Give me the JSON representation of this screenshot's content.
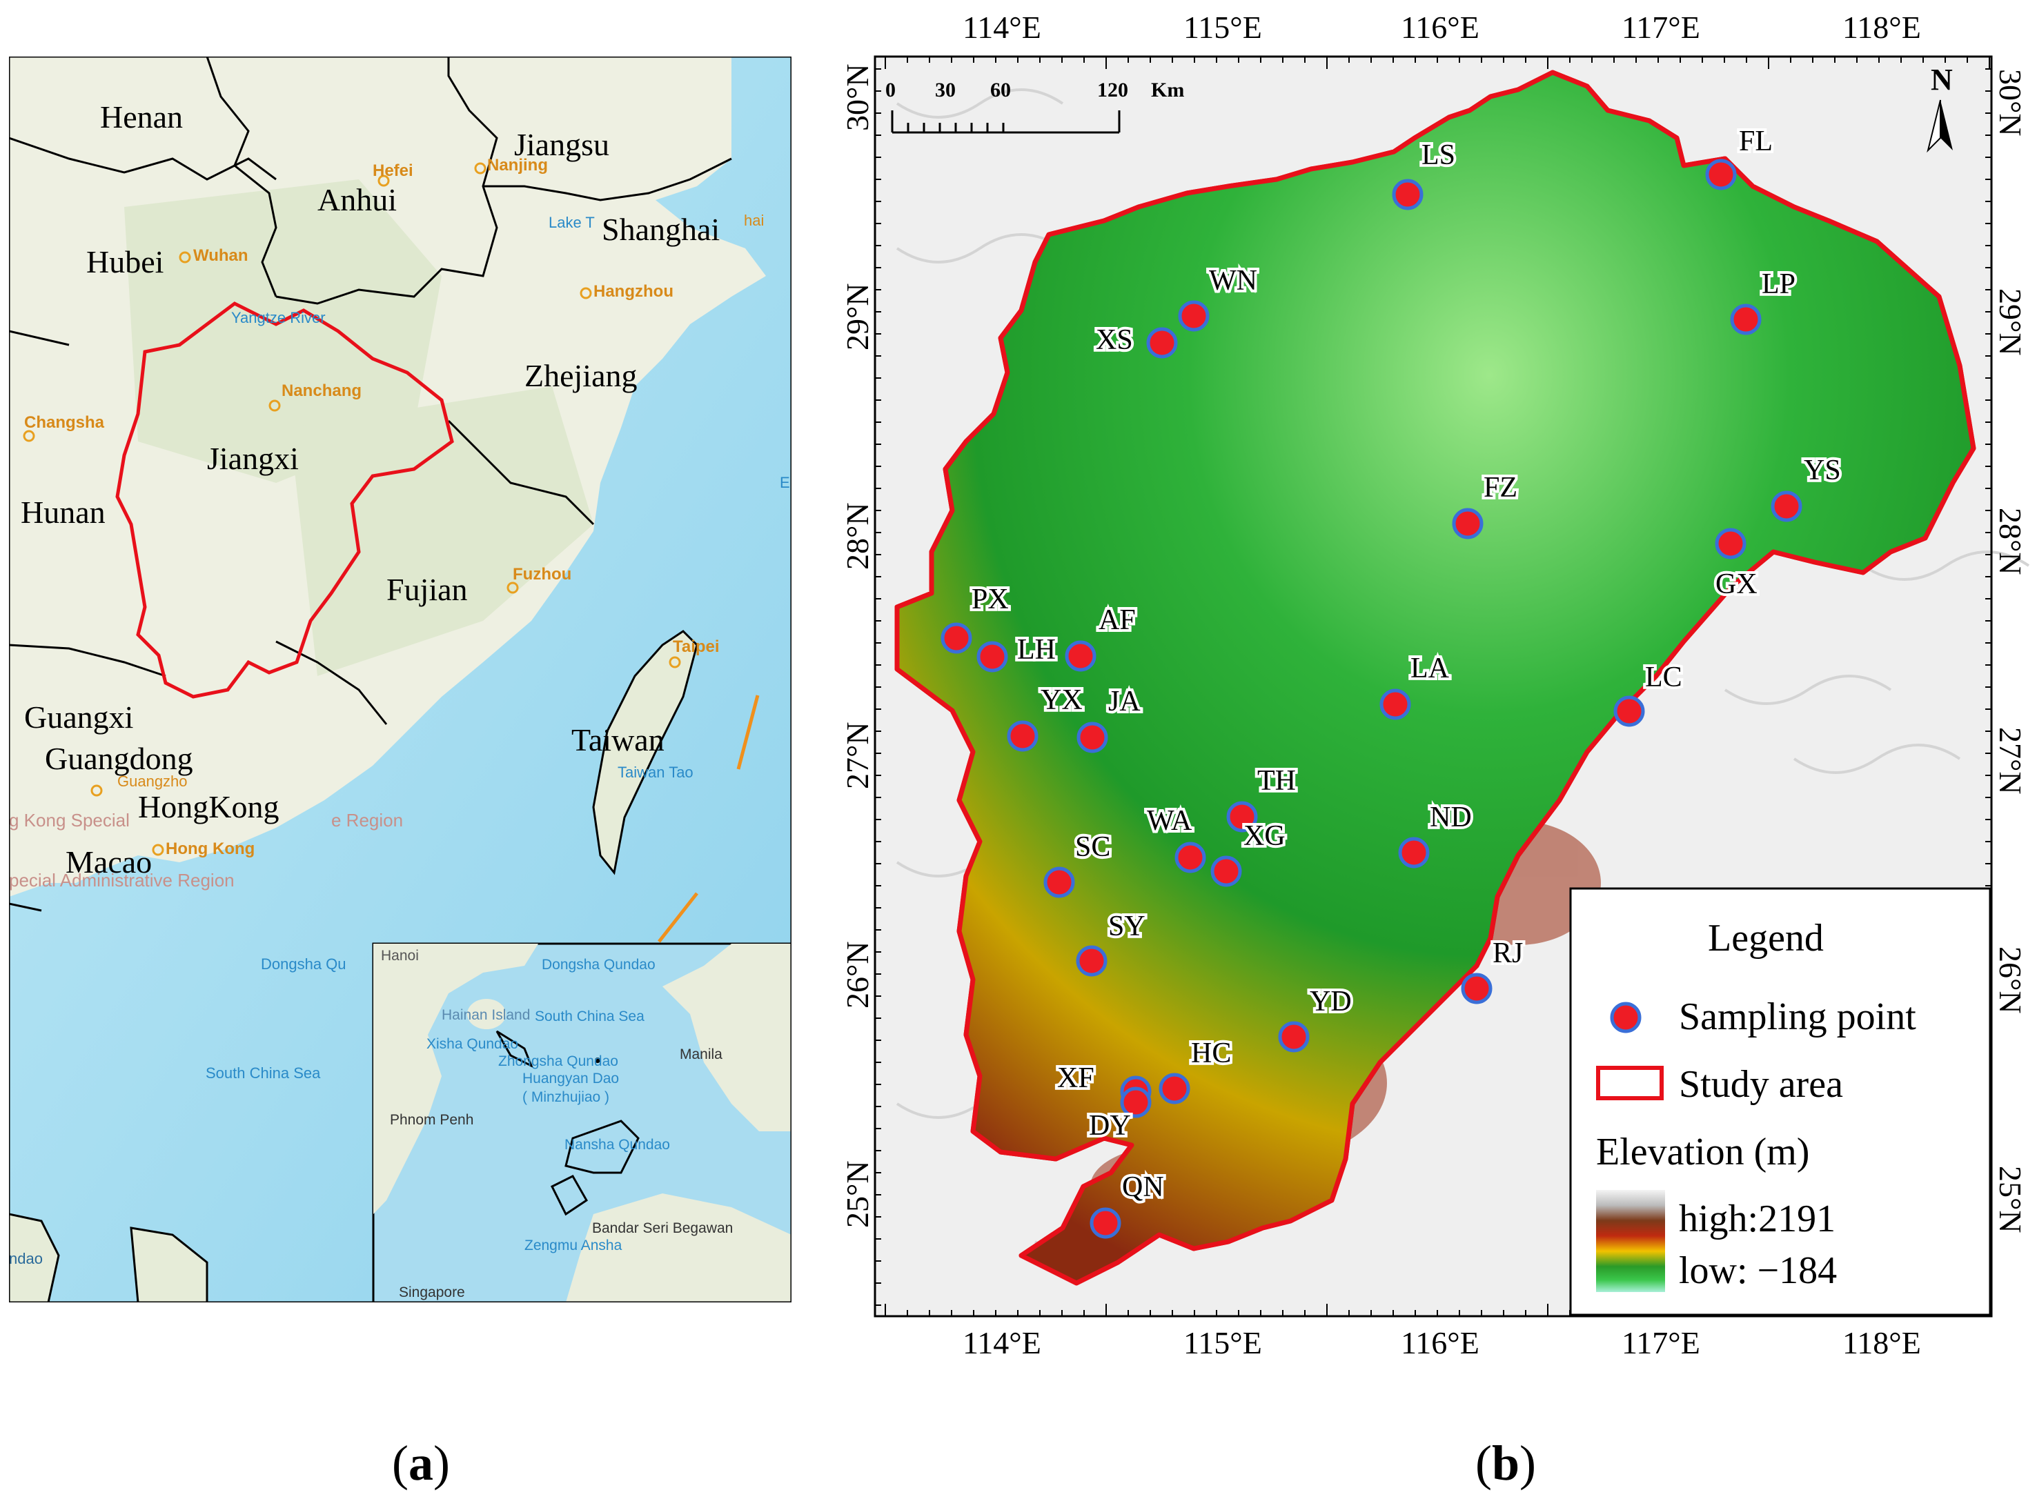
{
  "panel_a": {
    "caption_letter": "a",
    "provinces": [
      {
        "name": "Henan"
      },
      {
        "name": "Jiangsu"
      },
      {
        "name": "Anhui"
      },
      {
        "name": "Shanghai"
      },
      {
        "name": "Hubei"
      },
      {
        "name": "Zhejiang"
      },
      {
        "name": "Jiangxi"
      },
      {
        "name": "Hunan"
      },
      {
        "name": "Fujian"
      },
      {
        "name": "Guangxi"
      },
      {
        "name": "Guangdong"
      },
      {
        "name": "HongKong"
      },
      {
        "name": "Taiwan"
      },
      {
        "name": "Macao"
      }
    ],
    "cities": [
      {
        "name": "Hefei"
      },
      {
        "name": "Nanjing"
      },
      {
        "name": "Wuhan"
      },
      {
        "name": "Hangzhou"
      },
      {
        "name": "Nanchang"
      },
      {
        "name": "Changsha"
      },
      {
        "name": "Fuzhou"
      },
      {
        "name": "Taipei"
      },
      {
        "name": "Hong Kong"
      }
    ],
    "basemap_labels": [
      {
        "text": "Lake T"
      },
      {
        "text": "Yangtze River"
      },
      {
        "text": "Taiwan Tao"
      },
      {
        "text": "Dongsha Qu"
      },
      {
        "text": "South China Sea"
      },
      {
        "text": "hai"
      },
      {
        "text": "Guangzho"
      },
      {
        "text": "g Kong Special"
      },
      {
        "text": "e Region"
      },
      {
        "text": "pecial Administrative Region"
      },
      {
        "text": "ndao"
      },
      {
        "text": "E"
      }
    ],
    "inset_labels": [
      {
        "text": "Hanoi"
      },
      {
        "text": "Dongsha Qundao"
      },
      {
        "text": "Hainan Island"
      },
      {
        "text": "South China Sea"
      },
      {
        "text": "Xisha Qundao"
      },
      {
        "text": "Zhongsha Qundao"
      },
      {
        "text": "Huangyan Dao"
      },
      {
        "text": "( Minzhujiao )"
      },
      {
        "text": "Manila"
      },
      {
        "text": "Phnom Penh"
      },
      {
        "text": "Nansha Qundao"
      },
      {
        "text": "Bandar Seri Begawan"
      },
      {
        "text": "Zengmu Ansha"
      },
      {
        "text": "Singapore"
      }
    ]
  },
  "panel_b": {
    "caption_letter": "b",
    "lon_ticks": [
      "114°E",
      "115°E",
      "116°E",
      "117°E",
      "118°E"
    ],
    "lat_ticks": [
      "30°N",
      "29°N",
      "28°N",
      "27°N",
      "26°N",
      "25°N"
    ],
    "scale_bar": {
      "labels": [
        "0",
        "30",
        "60",
        "120"
      ],
      "unit": "Km"
    },
    "north": "N",
    "sampling_points": [
      {
        "code": "LS"
      },
      {
        "code": "FL"
      },
      {
        "code": "WN"
      },
      {
        "code": "XS"
      },
      {
        "code": "LP"
      },
      {
        "code": "FZ"
      },
      {
        "code": "YS"
      },
      {
        "code": "GX"
      },
      {
        "code": "PX"
      },
      {
        "code": "LH"
      },
      {
        "code": "AF"
      },
      {
        "code": "LA"
      },
      {
        "code": "LC"
      },
      {
        "code": "YX"
      },
      {
        "code": "JA"
      },
      {
        "code": "TH"
      },
      {
        "code": "WA"
      },
      {
        "code": "XG"
      },
      {
        "code": "ND"
      },
      {
        "code": "SC"
      },
      {
        "code": "SY"
      },
      {
        "code": "RJ"
      },
      {
        "code": "YD"
      },
      {
        "code": "HC"
      },
      {
        "code": "XF"
      },
      {
        "code": "DY"
      },
      {
        "code": "QN"
      }
    ],
    "legend": {
      "title": "Legend",
      "sampling_point_label": "Sampling point",
      "study_area_label": "Study area",
      "elevation_title": "Elevation (m)",
      "high_label": "high:2191",
      "low_label": "low: −184"
    }
  },
  "colors": {
    "boundary": "#e8101a",
    "point_fill": "#ee1c25",
    "point_stroke": "#3a6fd8",
    "sea": "#a8def0",
    "land": "#eef0e4"
  }
}
